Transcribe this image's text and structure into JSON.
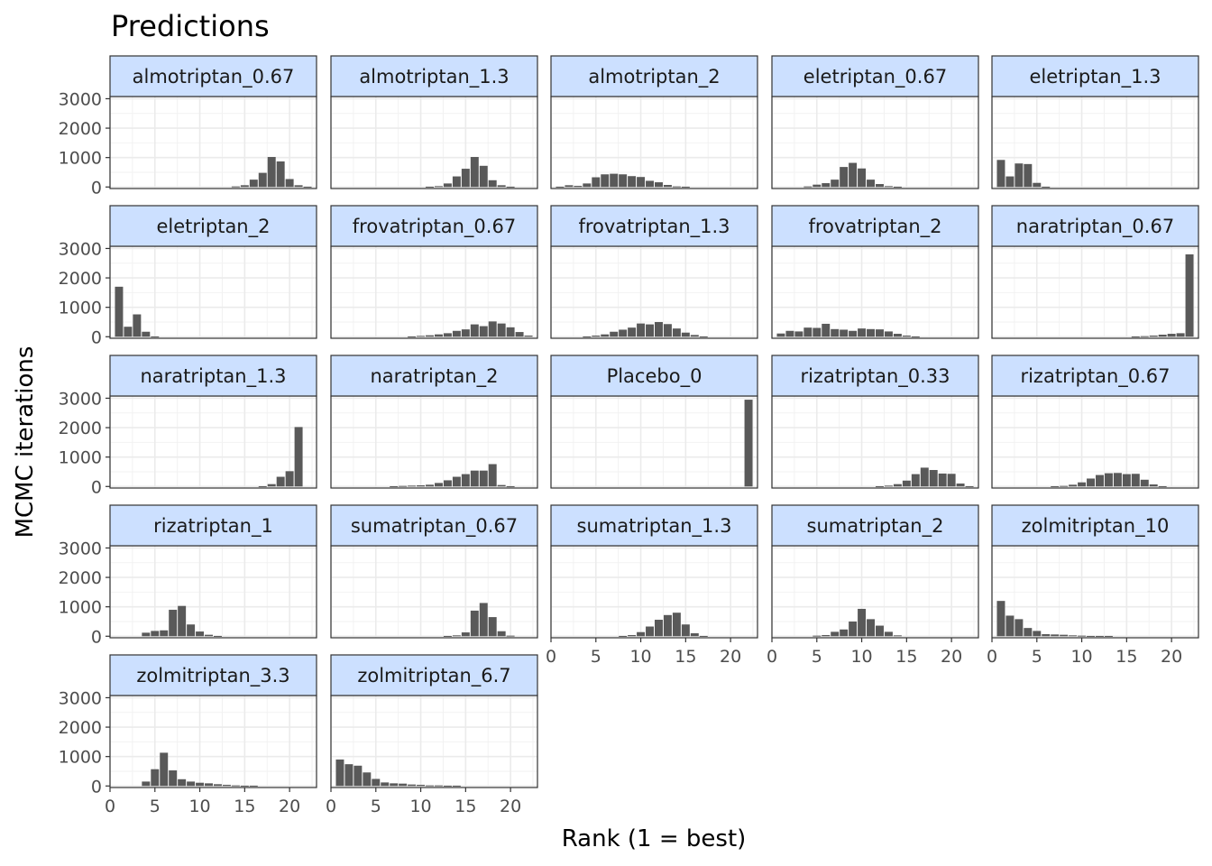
{
  "chart_data": {
    "type": "bar",
    "title": "Predictions",
    "xlabel": "Rank (1 = best)",
    "ylabel": "MCMC iterations",
    "xlim": [
      0,
      23
    ],
    "ylim": [
      0,
      3000
    ],
    "x_ticks": [
      0,
      5,
      10,
      15,
      20
    ],
    "y_ticks": [
      0,
      1000,
      2000,
      3000
    ],
    "grid": true,
    "strip_color": "#cce0ff",
    "bar_color": "#595959",
    "ranks": [
      1,
      2,
      3,
      4,
      5,
      6,
      7,
      8,
      9,
      10,
      11,
      12,
      13,
      14,
      15,
      16,
      17,
      18,
      19,
      20,
      21,
      22
    ],
    "panels": [
      {
        "name": "almotriptan_0.67",
        "values": [
          0,
          0,
          0,
          0,
          0,
          0,
          0,
          0,
          0,
          0,
          0,
          0,
          0,
          20,
          60,
          250,
          480,
          1020,
          870,
          270,
          60,
          10
        ]
      },
      {
        "name": "almotriptan_1.3",
        "values": [
          0,
          0,
          0,
          0,
          0,
          0,
          0,
          0,
          0,
          0,
          10,
          30,
          120,
          360,
          620,
          1020,
          720,
          230,
          60,
          10,
          0,
          0
        ]
      },
      {
        "name": "almotriptan_2",
        "values": [
          10,
          60,
          40,
          120,
          330,
          430,
          450,
          430,
          370,
          340,
          210,
          160,
          70,
          20,
          10,
          0,
          0,
          0,
          0,
          0,
          0,
          0
        ]
      },
      {
        "name": "eletriptan_0.67",
        "values": [
          0,
          0,
          0,
          20,
          80,
          130,
          250,
          680,
          820,
          630,
          250,
          100,
          30,
          10,
          0,
          0,
          0,
          0,
          0,
          0,
          0,
          0
        ]
      },
      {
        "name": "eletriptan_1.3",
        "values": [
          920,
          360,
          800,
          780,
          140,
          10,
          0,
          0,
          0,
          0,
          0,
          0,
          0,
          0,
          0,
          0,
          0,
          0,
          0,
          0,
          0,
          0
        ]
      },
      {
        "name": "eletriptan_2",
        "values": [
          1700,
          340,
          760,
          170,
          10,
          0,
          0,
          0,
          0,
          0,
          0,
          0,
          0,
          0,
          0,
          0,
          0,
          0,
          0,
          0,
          0,
          0
        ]
      },
      {
        "name": "frovatriptan_0.67",
        "values": [
          0,
          0,
          0,
          0,
          0,
          0,
          0,
          0,
          10,
          30,
          50,
          80,
          120,
          200,
          250,
          420,
          360,
          520,
          450,
          320,
          160,
          40
        ]
      },
      {
        "name": "frovatriptan_1.3",
        "values": [
          0,
          0,
          0,
          10,
          40,
          80,
          170,
          240,
          310,
          450,
          420,
          500,
          430,
          280,
          140,
          60,
          10,
          0,
          0,
          0,
          0,
          0
        ]
      },
      {
        "name": "frovatriptan_2",
        "values": [
          110,
          200,
          180,
          310,
          300,
          440,
          260,
          240,
          200,
          280,
          260,
          250,
          180,
          100,
          40,
          10,
          0,
          0,
          0,
          0,
          0,
          0
        ]
      },
      {
        "name": "naratriptan_0.67",
        "values": [
          0,
          0,
          0,
          0,
          0,
          0,
          0,
          0,
          0,
          0,
          0,
          0,
          0,
          0,
          0,
          10,
          20,
          40,
          70,
          100,
          120,
          2800
        ]
      },
      {
        "name": "naratriptan_1.3",
        "values": [
          0,
          0,
          0,
          0,
          0,
          0,
          0,
          0,
          0,
          0,
          0,
          0,
          0,
          0,
          0,
          0,
          10,
          80,
          330,
          520,
          2020,
          0
        ]
      },
      {
        "name": "naratriptan_2",
        "values": [
          0,
          0,
          0,
          0,
          0,
          0,
          10,
          20,
          30,
          40,
          60,
          120,
          210,
          330,
          420,
          540,
          540,
          760,
          50,
          10,
          0,
          0
        ]
      },
      {
        "name": "Placebo_0",
        "values": [
          0,
          0,
          0,
          0,
          0,
          0,
          0,
          0,
          0,
          0,
          0,
          0,
          0,
          0,
          0,
          0,
          0,
          0,
          0,
          0,
          0,
          2950
        ]
      },
      {
        "name": "rizatriptan_0.33",
        "values": [
          0,
          0,
          0,
          0,
          0,
          0,
          0,
          0,
          0,
          0,
          0,
          10,
          30,
          80,
          200,
          420,
          640,
          560,
          440,
          430,
          100,
          10
        ]
      },
      {
        "name": "rizatriptan_0.67",
        "values": [
          0,
          0,
          0,
          0,
          0,
          0,
          10,
          20,
          60,
          140,
          270,
          390,
          450,
          460,
          420,
          430,
          230,
          70,
          10,
          0,
          0,
          0
        ]
      },
      {
        "name": "rizatriptan_1",
        "values": [
          0,
          0,
          0,
          120,
          180,
          200,
          900,
          1030,
          400,
          160,
          50,
          10,
          0,
          0,
          0,
          0,
          0,
          0,
          0,
          0,
          0,
          0
        ]
      },
      {
        "name": "sumatriptan_0.67",
        "values": [
          0,
          0,
          0,
          0,
          0,
          0,
          0,
          0,
          0,
          0,
          0,
          0,
          10,
          30,
          130,
          870,
          1130,
          650,
          170,
          20,
          0,
          0
        ]
      },
      {
        "name": "sumatriptan_1.3",
        "values": [
          0,
          0,
          0,
          0,
          0,
          0,
          0,
          10,
          40,
          140,
          330,
          560,
          720,
          800,
          400,
          100,
          10,
          0,
          0,
          0,
          0,
          0
        ]
      },
      {
        "name": "sumatriptan_2",
        "values": [
          0,
          0,
          0,
          0,
          20,
          40,
          150,
          230,
          500,
          930,
          580,
          360,
          150,
          30,
          0,
          0,
          0,
          0,
          0,
          0,
          0,
          0
        ]
      },
      {
        "name": "zolmitriptan_10",
        "values": [
          1200,
          700,
          580,
          280,
          180,
          70,
          60,
          50,
          30,
          20,
          10,
          10,
          10,
          0,
          0,
          0,
          0,
          0,
          0,
          0,
          0,
          0
        ]
      },
      {
        "name": "zolmitriptan_3.3",
        "values": [
          0,
          0,
          0,
          150,
          570,
          1130,
          530,
          230,
          150,
          110,
          90,
          60,
          40,
          20,
          10,
          10,
          0,
          0,
          0,
          0,
          0,
          0
        ]
      },
      {
        "name": "zolmitriptan_6.7",
        "values": [
          900,
          740,
          690,
          460,
          240,
          120,
          90,
          80,
          50,
          40,
          20,
          20,
          10,
          10,
          0,
          0,
          0,
          0,
          0,
          0,
          0,
          0
        ]
      }
    ]
  }
}
